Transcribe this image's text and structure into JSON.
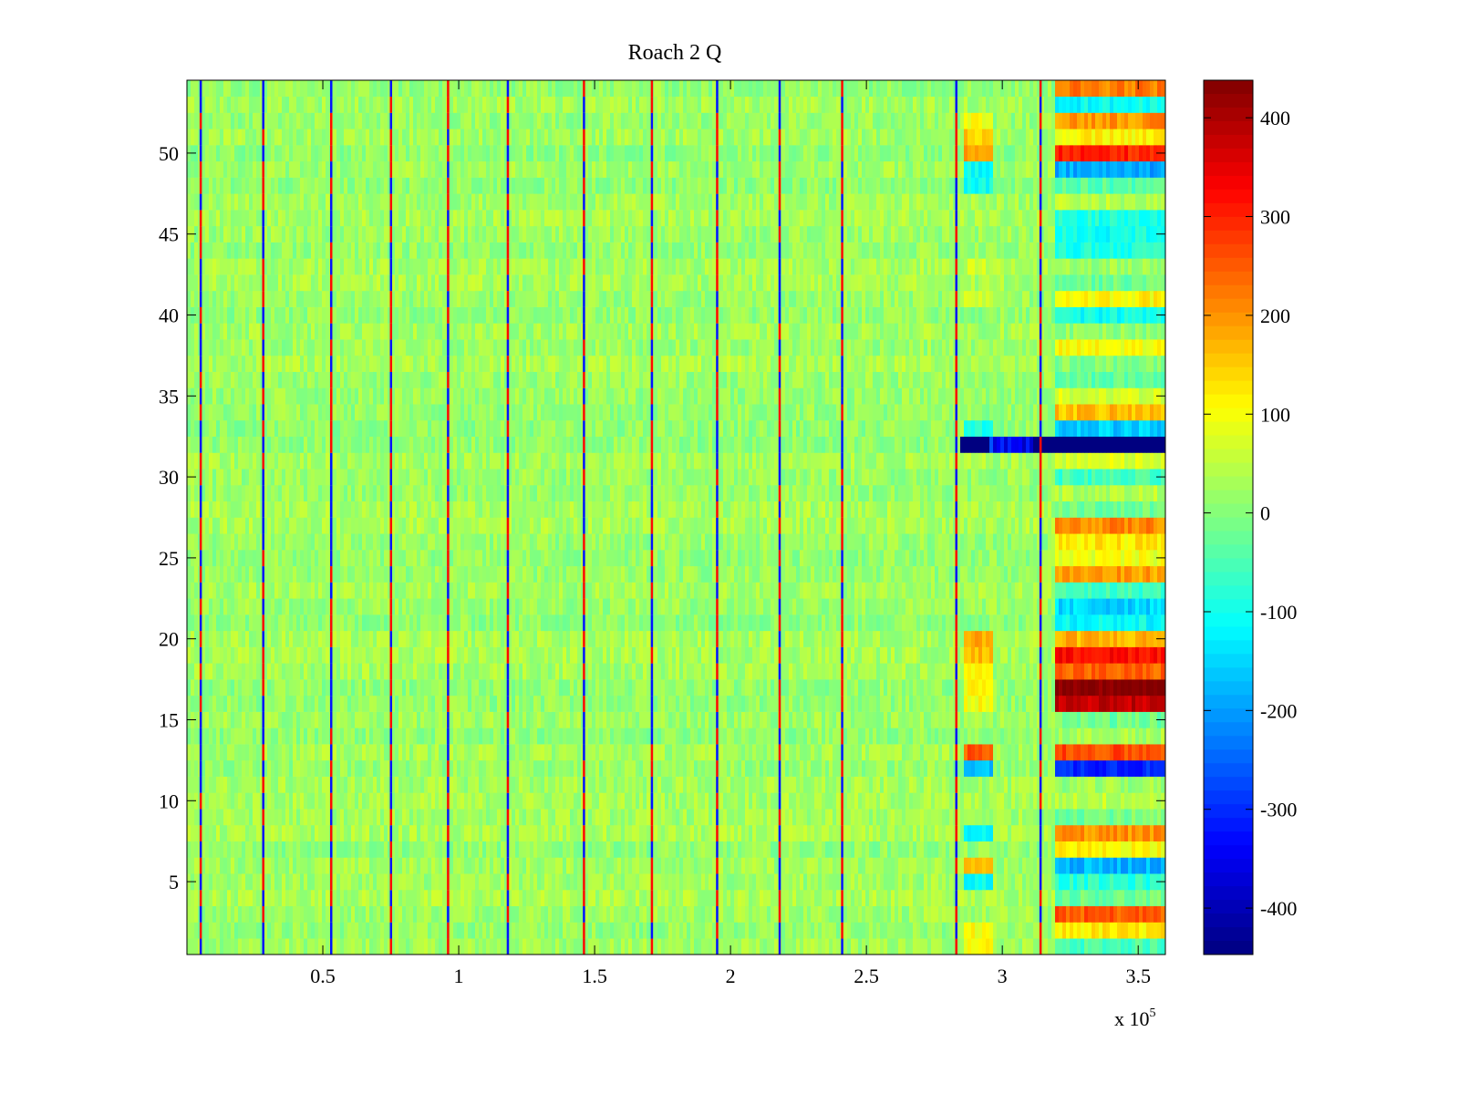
{
  "chart_data": {
    "type": "heatmap",
    "title": "Roach 2 Q",
    "xlabel": "",
    "ylabel": "",
    "x_multiplier_label": "x 10",
    "x_multiplier_exponent": "5",
    "xlim": [
      0,
      3.6
    ],
    "ylim": [
      0.5,
      54.5
    ],
    "x_ticks": [
      0.5,
      1,
      1.5,
      2,
      2.5,
      3,
      3.5
    ],
    "x_tick_labels": [
      "0.5",
      "1",
      "1.5",
      "2",
      "2.5",
      "3",
      "3.5"
    ],
    "y_ticks": [
      5,
      10,
      15,
      20,
      25,
      30,
      35,
      40,
      45,
      50
    ],
    "y_tick_labels": [
      "5",
      "10",
      "15",
      "20",
      "25",
      "30",
      "35",
      "40",
      "45",
      "50"
    ],
    "rows": 54,
    "colormap": "jet",
    "clim": [
      -447,
      438
    ],
    "colorbar_ticks": [
      400,
      300,
      200,
      100,
      0,
      -100,
      -200,
      -300,
      -400
    ],
    "colorbar_tick_labels": [
      "400",
      "300",
      "200",
      "100",
      "0",
      "-100",
      "-200",
      "-300",
      "-400"
    ],
    "background": {
      "mean": 20,
      "spread": 35
    },
    "spike_lines_x": [
      0.05,
      0.28,
      0.53,
      0.75,
      0.96,
      1.18,
      1.46,
      1.71,
      1.95,
      2.18,
      2.41,
      2.83,
      3.14
    ],
    "spike_amplitude": 320,
    "mid_segment": {
      "x_range": [
        2.86,
        2.96
      ],
      "row_values": {
        "1": 110,
        "2": 100,
        "5": -110,
        "6": 150,
        "8": -110,
        "12": -170,
        "13": 250,
        "16": 100,
        "17": 110,
        "18": 120,
        "19": 170,
        "20": 180,
        "32": -450,
        "33": -90,
        "41": 60,
        "43": 60,
        "48": -100,
        "49": -110,
        "50": 200,
        "51": 150,
        "52": 100
      }
    },
    "row32_extended": {
      "x_range": [
        2.85,
        3.6
      ],
      "value": -450,
      "lighter_range": [
        2.95,
        3.12
      ],
      "lighter_value": -330
    },
    "late_segment": {
      "x_range": [
        3.2,
        3.6
      ],
      "row_values": [
        -50,
        120,
        250,
        -20,
        -80,
        -180,
        110,
        200,
        -10,
        50,
        20,
        -300,
        260,
        30,
        -20,
        380,
        438,
        240,
        320,
        170,
        -110,
        -150,
        -60,
        190,
        90,
        120,
        210,
        -20,
        40,
        -60,
        70,
        -450,
        -160,
        160,
        70,
        -30,
        0,
        100,
        10,
        -100,
        110,
        -20,
        20,
        -90,
        -100,
        -90,
        40,
        -40,
        -190,
        300,
        110,
        200,
        -110,
        220
      ]
    }
  }
}
